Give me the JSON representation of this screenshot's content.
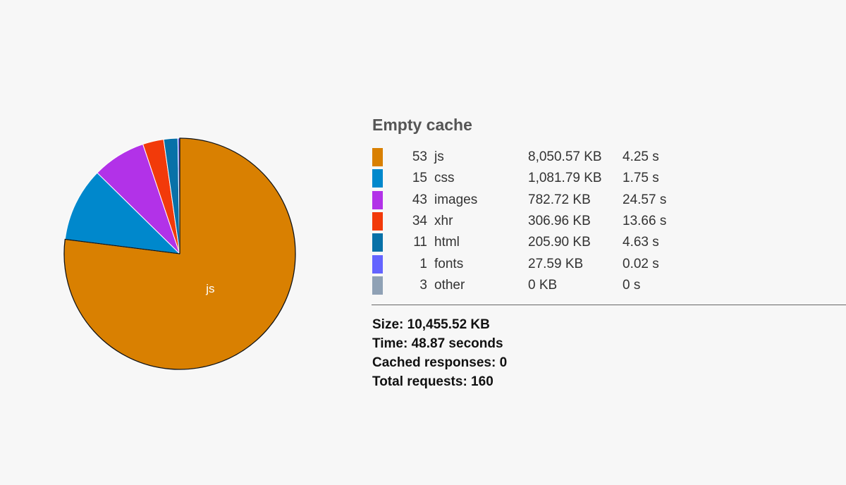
{
  "chart_data": {
    "type": "pie",
    "slice_label": "js",
    "slices": [
      {
        "label": "js",
        "requests": 53,
        "size": "8,050.57 KB",
        "size_kb": 8050.57,
        "time": "4.25 s",
        "color": "#d98001"
      },
      {
        "label": "css",
        "requests": 15,
        "size": "1,081.79 KB",
        "size_kb": 1081.79,
        "time": "1.75 s",
        "color": "#0088cc"
      },
      {
        "label": "images",
        "requests": 43,
        "size": "782.72 KB",
        "size_kb": 782.72,
        "time": "24.57 s",
        "color": "#b232e8"
      },
      {
        "label": "xhr",
        "requests": 34,
        "size": "306.96 KB",
        "size_kb": 306.96,
        "time": "13.66 s",
        "color": "#f23a0a"
      },
      {
        "label": "html",
        "requests": 11,
        "size": "205.90 KB",
        "size_kb": 205.9,
        "time": "4.63 s",
        "color": "#0871a8"
      },
      {
        "label": "fonts",
        "requests": 1,
        "size": "27.59 KB",
        "size_kb": 27.59,
        "time": "0.02 s",
        "color": "#6464ff"
      },
      {
        "label": "other",
        "requests": 3,
        "size": "0 KB",
        "size_kb": 0,
        "time": "0 s",
        "color": "#8fa1b5"
      }
    ]
  },
  "panel": {
    "title": "Empty cache",
    "size_line": "Size: 10,455.52 KB",
    "time_line": "Time: 48.87 seconds",
    "cached_line": "Cached responses: 0",
    "requests_line": "Total requests: 160"
  }
}
